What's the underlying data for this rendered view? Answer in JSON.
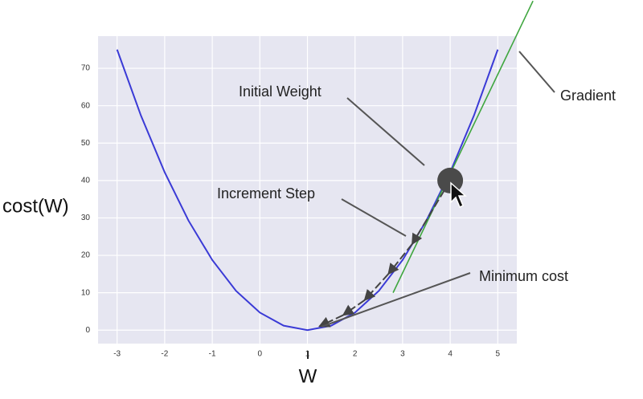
{
  "chart_data": {
    "type": "line",
    "x_label": "W",
    "y_label": "cost(W)",
    "x": [
      -3,
      -2.5,
      -2,
      -1.5,
      -1,
      -0.5,
      0,
      0.5,
      1,
      1.5,
      2,
      2.5,
      3,
      3.5,
      4,
      4.5,
      5
    ],
    "series": [
      {
        "name": "cost",
        "color": "#3a3ad6",
        "values": [
          75,
          57.4,
          42.2,
          29.3,
          18.75,
          10.5,
          4.7,
          1.2,
          0,
          1.2,
          4.7,
          10.5,
          18.75,
          29.3,
          42.2,
          57.4,
          75
        ]
      }
    ],
    "gradient_line": {
      "color": "#3fa63f",
      "x": [
        2.8,
        5.74
      ],
      "y": [
        10,
        88
      ]
    },
    "initial_point": {
      "x": 4,
      "y": 40
    },
    "descent_steps": {
      "x": [
        3.2,
        2.7,
        2.2,
        1.75,
        1.25
      ],
      "y": [
        23,
        15,
        8,
        4,
        1
      ]
    },
    "annotations": [
      "Initial Weight",
      "Increment Step",
      "Minimum cost",
      "Gradient"
    ],
    "xlim": [
      -3.4,
      5.4
    ],
    "ylim": [
      -3.6,
      78.6
    ],
    "xticks": [
      -3,
      -2,
      -1,
      0,
      1,
      2,
      3,
      4,
      5
    ],
    "yticks": [
      0,
      10,
      20,
      30,
      40,
      50,
      60,
      70
    ],
    "grid": true
  }
}
